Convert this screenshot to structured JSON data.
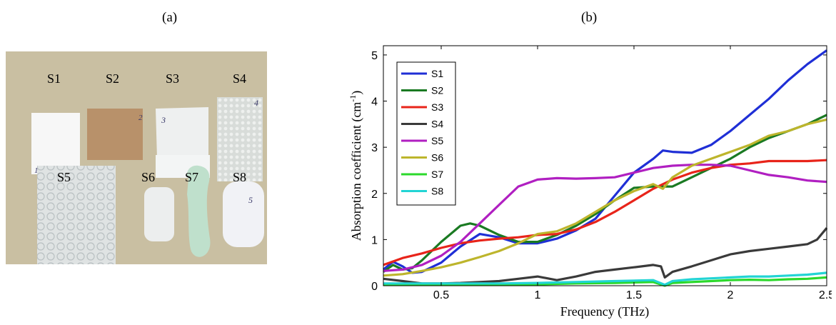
{
  "panels": {
    "a": "(a)",
    "b": "(b)"
  },
  "photo": {
    "background": "#c9bfa2",
    "samples": [
      "S1",
      "S2",
      "S3",
      "S4",
      "S5",
      "S6",
      "S7",
      "S8"
    ],
    "handwritten": [
      "1",
      "2",
      "3",
      "4",
      "5"
    ]
  },
  "chart_data": {
    "type": "line",
    "xlabel": "Frequency (THz)",
    "ylabel_main": "Absorption coefficient (cm",
    "ylabel_sup": "-1",
    "ylabel_end": ")",
    "xlim": [
      0.2,
      2.5
    ],
    "ylim": [
      0,
      5.2
    ],
    "xticks": [
      0.5,
      1,
      1.5,
      2,
      2.5
    ],
    "xtick_labels": [
      "0.5",
      "1",
      "1.5",
      "2",
      "2.5"
    ],
    "yticks": [
      0,
      1,
      2,
      3,
      4,
      5
    ],
    "ytick_labels": [
      "0",
      "1",
      "2",
      "3",
      "4",
      "5"
    ],
    "grid": false,
    "legend_position": "top-left",
    "series": [
      {
        "name": "S1",
        "color": "#1f2fd6",
        "x": [
          0.2,
          0.25,
          0.3,
          0.35,
          0.4,
          0.5,
          0.6,
          0.7,
          0.8,
          0.9,
          1.0,
          1.1,
          1.2,
          1.3,
          1.4,
          1.5,
          1.6,
          1.65,
          1.7,
          1.8,
          1.9,
          2.0,
          2.1,
          2.2,
          2.3,
          2.4,
          2.5
        ],
        "y": [
          0.35,
          0.52,
          0.42,
          0.28,
          0.3,
          0.5,
          0.85,
          1.12,
          1.05,
          0.92,
          0.92,
          1.02,
          1.2,
          1.45,
          1.95,
          2.45,
          2.75,
          2.93,
          2.9,
          2.88,
          3.05,
          3.35,
          3.7,
          4.05,
          4.45,
          4.8,
          5.1
        ]
      },
      {
        "name": "S2",
        "color": "#1a7a22",
        "x": [
          0.2,
          0.25,
          0.3,
          0.35,
          0.4,
          0.5,
          0.6,
          0.65,
          0.7,
          0.8,
          0.9,
          1.0,
          1.1,
          1.2,
          1.3,
          1.4,
          1.5,
          1.6,
          1.7,
          1.8,
          1.9,
          2.0,
          2.1,
          2.2,
          2.3,
          2.4,
          2.5
        ],
        "y": [
          0.3,
          0.45,
          0.35,
          0.38,
          0.55,
          0.95,
          1.3,
          1.35,
          1.3,
          1.1,
          0.95,
          0.95,
          1.1,
          1.3,
          1.55,
          1.85,
          2.12,
          2.15,
          2.15,
          2.35,
          2.55,
          2.75,
          3.0,
          3.2,
          3.35,
          3.5,
          3.7
        ]
      },
      {
        "name": "S3",
        "color": "#e8241a",
        "x": [
          0.2,
          0.3,
          0.4,
          0.5,
          0.6,
          0.7,
          0.8,
          0.9,
          1.0,
          1.1,
          1.2,
          1.3,
          1.4,
          1.5,
          1.6,
          1.7,
          1.8,
          1.9,
          2.0,
          2.1,
          2.2,
          2.3,
          2.4,
          2.5
        ],
        "y": [
          0.45,
          0.6,
          0.7,
          0.82,
          0.92,
          0.98,
          1.02,
          1.05,
          1.1,
          1.12,
          1.22,
          1.38,
          1.6,
          1.85,
          2.1,
          2.3,
          2.45,
          2.55,
          2.62,
          2.65,
          2.7,
          2.7,
          2.7,
          2.72
        ]
      },
      {
        "name": "S4",
        "color": "#3a3a3a",
        "x": [
          0.2,
          0.3,
          0.4,
          0.5,
          0.6,
          0.7,
          0.8,
          0.9,
          1.0,
          1.1,
          1.2,
          1.3,
          1.4,
          1.5,
          1.6,
          1.64,
          1.66,
          1.7,
          1.8,
          1.9,
          2.0,
          2.1,
          2.2,
          2.3,
          2.4,
          2.45,
          2.5
        ],
        "y": [
          0.15,
          0.1,
          0.05,
          0.05,
          0.06,
          0.08,
          0.1,
          0.15,
          0.2,
          0.12,
          0.2,
          0.3,
          0.35,
          0.4,
          0.45,
          0.42,
          0.18,
          0.3,
          0.42,
          0.55,
          0.68,
          0.75,
          0.8,
          0.85,
          0.9,
          1.0,
          1.25
        ]
      },
      {
        "name": "S5",
        "color": "#b01fc1",
        "x": [
          0.2,
          0.3,
          0.4,
          0.5,
          0.6,
          0.7,
          0.8,
          0.9,
          1.0,
          1.1,
          1.2,
          1.3,
          1.4,
          1.5,
          1.6,
          1.7,
          1.8,
          1.9,
          2.0,
          2.1,
          2.2,
          2.3,
          2.4,
          2.5
        ],
        "y": [
          0.32,
          0.35,
          0.45,
          0.65,
          0.95,
          1.35,
          1.75,
          2.15,
          2.3,
          2.33,
          2.32,
          2.33,
          2.35,
          2.45,
          2.55,
          2.6,
          2.62,
          2.62,
          2.6,
          2.5,
          2.4,
          2.35,
          2.28,
          2.25
        ]
      },
      {
        "name": "S6",
        "color": "#bdb52c",
        "x": [
          0.2,
          0.3,
          0.4,
          0.5,
          0.6,
          0.7,
          0.8,
          0.9,
          1.0,
          1.1,
          1.2,
          1.3,
          1.4,
          1.5,
          1.6,
          1.65,
          1.7,
          1.8,
          1.9,
          2.0,
          2.1,
          2.2,
          2.3,
          2.4,
          2.5
        ],
        "y": [
          0.22,
          0.25,
          0.32,
          0.4,
          0.5,
          0.62,
          0.75,
          0.92,
          1.12,
          1.18,
          1.35,
          1.6,
          1.85,
          2.05,
          2.2,
          2.1,
          2.35,
          2.6,
          2.75,
          2.9,
          3.05,
          3.25,
          3.35,
          3.5,
          3.6
        ]
      },
      {
        "name": "S7",
        "color": "#2bd92b",
        "x": [
          0.2,
          0.4,
          0.6,
          0.8,
          1.0,
          1.2,
          1.4,
          1.6,
          1.66,
          1.7,
          1.8,
          1.9,
          2.0,
          2.1,
          2.2,
          2.3,
          2.4,
          2.5
        ],
        "y": [
          0.02,
          0.02,
          0.02,
          0.03,
          0.03,
          0.05,
          0.06,
          0.08,
          0.0,
          0.06,
          0.08,
          0.1,
          0.12,
          0.13,
          0.12,
          0.14,
          0.15,
          0.18
        ]
      },
      {
        "name": "S8",
        "color": "#22d4d4",
        "x": [
          0.2,
          0.4,
          0.6,
          0.8,
          1.0,
          1.2,
          1.4,
          1.6,
          1.66,
          1.7,
          1.8,
          1.9,
          2.0,
          2.1,
          2.2,
          2.3,
          2.4,
          2.5
        ],
        "y": [
          0.05,
          0.05,
          0.05,
          0.05,
          0.06,
          0.08,
          0.1,
          0.12,
          0.02,
          0.1,
          0.14,
          0.16,
          0.18,
          0.2,
          0.2,
          0.22,
          0.24,
          0.28
        ]
      }
    ]
  }
}
